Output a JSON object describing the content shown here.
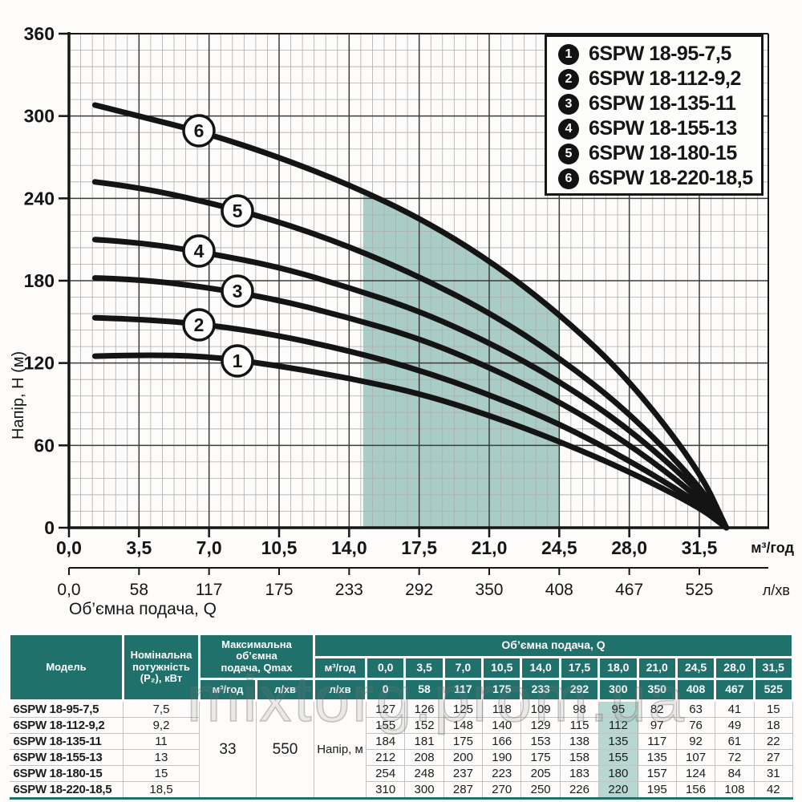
{
  "watermark": "mixtorg.prom.ua",
  "chart": {
    "y_axis": {
      "label": "Напір, H (м)",
      "ticks": [
        "360",
        "300",
        "240",
        "180",
        "120",
        "60",
        "0"
      ]
    },
    "x_axis_primary": {
      "unit": "м³/год",
      "ticks": [
        "0,0",
        "3,5",
        "7,0",
        "10,5",
        "14,0",
        "17,5",
        "21,0",
        "24,5",
        "28,0",
        "31,5"
      ]
    },
    "x_axis_secondary": {
      "unit": "л/хв",
      "ticks": [
        "0,0",
        "58",
        "117",
        "175",
        "233",
        "292",
        "350",
        "408",
        "467",
        "525"
      ]
    },
    "x_caption": "Об’ємна подача, Q",
    "legend": [
      {
        "num": "1",
        "label": "6SPW 18-95-7,5"
      },
      {
        "num": "2",
        "label": "6SPW 18-112-9,2"
      },
      {
        "num": "3",
        "label": "6SPW 18-135-11"
      },
      {
        "num": "4",
        "label": "6SPW 18-155-13"
      },
      {
        "num": "5",
        "label": "6SPW 18-180-15"
      },
      {
        "num": "6",
        "label": "6SPW 18-220-18,5"
      }
    ]
  },
  "chart_data": {
    "type": "line",
    "title": "",
    "xlabel": "Об’ємна подача, Q (м³/год)",
    "ylabel": "Напір, H (м)",
    "xlim": [
      0,
      35
    ],
    "ylim": [
      0,
      360
    ],
    "grid": true,
    "legend_position": "top-right",
    "x": [
      0,
      3.5,
      7,
      10.5,
      14,
      17.5,
      18,
      21,
      24.5,
      28,
      31.5,
      33
    ],
    "series": [
      {
        "num": "1",
        "name": "6SPW 18-95-7,5",
        "values": [
          127,
          126,
          125,
          118,
          109,
          98,
          95,
          82,
          63,
          41,
          15,
          0
        ]
      },
      {
        "num": "2",
        "name": "6SPW 18-112-9,2",
        "values": [
          155,
          152,
          148,
          140,
          129,
          115,
          112,
          97,
          76,
          49,
          18,
          0
        ]
      },
      {
        "num": "3",
        "name": "6SPW 18-135-11",
        "values": [
          184,
          181,
          175,
          166,
          153,
          138,
          135,
          117,
          92,
          61,
          22,
          0
        ]
      },
      {
        "num": "4",
        "name": "6SPW 18-155-13",
        "values": [
          212,
          208,
          200,
          190,
          175,
          158,
          155,
          135,
          107,
          72,
          27,
          0
        ]
      },
      {
        "num": "5",
        "name": "6SPW 18-180-15",
        "values": [
          254,
          248,
          237,
          223,
          205,
          183,
          180,
          157,
          124,
          84,
          31,
          0
        ]
      },
      {
        "num": "6",
        "name": "6SPW 18-220-18,5",
        "values": [
          310,
          300,
          287,
          270,
          250,
          226,
          220,
          195,
          156,
          108,
          42,
          0
        ]
      }
    ],
    "shaded_region_q": [
      14.7,
      24.5
    ]
  },
  "table": {
    "col_model": "Модель",
    "col_power_lines": [
      "Номінальна",
      "потужність",
      "(P₂), кВт"
    ],
    "col_qmax_lines": [
      "Максимальна об’ємна",
      "подача, Qmax"
    ],
    "qmax_units": [
      "м³/год",
      "л/хв"
    ],
    "band": "Об’ємна подача, Q",
    "unit_m3": "м³/год",
    "unit_l": "л/хв",
    "flow_m3": [
      "0,0",
      "3,5",
      "7,0",
      "10,5",
      "14,0",
      "17,5",
      "18,0",
      "21,0",
      "24,5",
      "28,0",
      "31,5"
    ],
    "flow_l": [
      "0",
      "58",
      "117",
      "175",
      "233",
      "292",
      "300",
      "350",
      "408",
      "467",
      "525"
    ],
    "qmax_m3": "33",
    "qmax_l": "550",
    "head_label": "Напір, м",
    "highlight_col": 6,
    "rows": [
      {
        "model": "6SPW 18-95-7,5",
        "power": "7,5",
        "head": [
          "127",
          "126",
          "125",
          "118",
          "109",
          "98",
          "95",
          "82",
          "63",
          "41",
          "15"
        ]
      },
      {
        "model": "6SPW 18-112-9,2",
        "power": "9,2",
        "head": [
          "155",
          "152",
          "148",
          "140",
          "129",
          "115",
          "112",
          "97",
          "76",
          "49",
          "18"
        ]
      },
      {
        "model": "6SPW 18-135-11",
        "power": "11",
        "head": [
          "184",
          "181",
          "175",
          "166",
          "153",
          "138",
          "135",
          "117",
          "92",
          "61",
          "22"
        ]
      },
      {
        "model": "6SPW 18-155-13",
        "power": "13",
        "head": [
          "212",
          "208",
          "200",
          "190",
          "175",
          "158",
          "155",
          "135",
          "107",
          "72",
          "27"
        ]
      },
      {
        "model": "6SPW 18-180-15",
        "power": "15",
        "head": [
          "254",
          "248",
          "237",
          "223",
          "205",
          "183",
          "180",
          "157",
          "124",
          "84",
          "31"
        ]
      },
      {
        "model": "6SPW 18-220-18,5",
        "power": "18,5",
        "head": [
          "310",
          "300",
          "287",
          "270",
          "250",
          "226",
          "220",
          "195",
          "156",
          "108",
          "42"
        ]
      }
    ]
  },
  "colors": {
    "teal_header": "#20706c",
    "table_highlight": "#b7d8d2",
    "chart_shade": "#a9cdc6",
    "curve": "#141414"
  }
}
